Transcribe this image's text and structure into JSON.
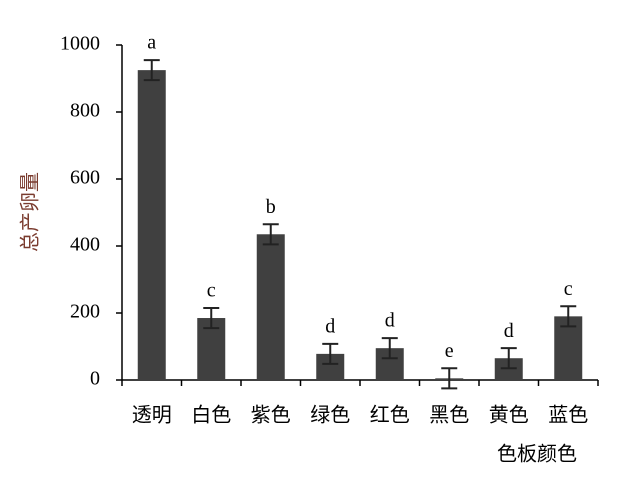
{
  "chart_data": {
    "type": "bar",
    "y_label": "总产卵量",
    "x_label": "色板颜色",
    "categories": [
      "透明",
      "白色",
      "紫色",
      "绿色",
      "红色",
      "黑色",
      "黄色",
      "蓝色"
    ],
    "values": [
      925,
      185,
      435,
      78,
      95,
      5,
      65,
      190
    ],
    "errors": [
      30,
      30,
      30,
      30,
      30,
      30,
      30,
      30
    ],
    "significance_labels": [
      "a",
      "c",
      "b",
      "d",
      "d",
      "e",
      "d",
      "c"
    ],
    "color": "#404040",
    "ylim": [
      0,
      1000
    ],
    "yticks": [
      0,
      200,
      400,
      600,
      800,
      1000
    ],
    "grid": false
  }
}
